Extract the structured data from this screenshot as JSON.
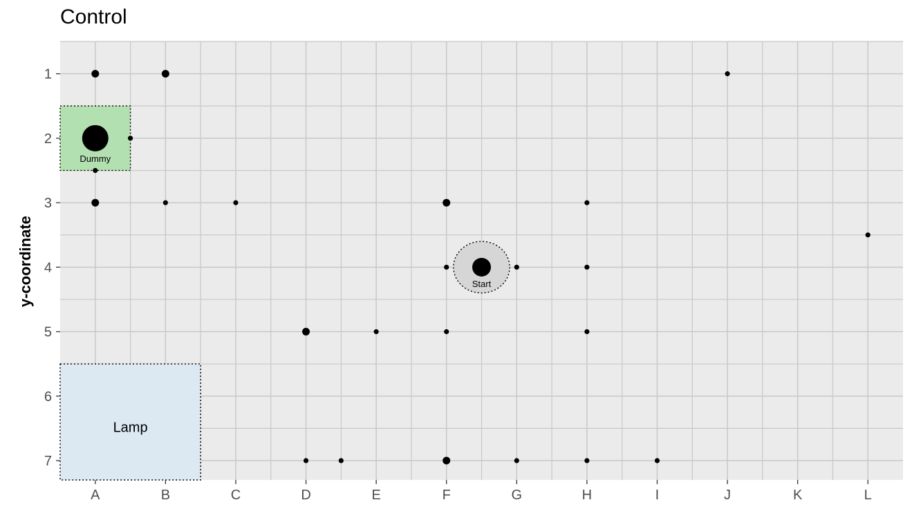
{
  "chart_data": {
    "type": "scatter",
    "title": "Control",
    "xlabel": "",
    "ylabel": "y-coordinate",
    "x_categories": [
      "A",
      "B",
      "C",
      "D",
      "E",
      "F",
      "G",
      "H",
      "I",
      "J",
      "K",
      "L"
    ],
    "y_ticks": [
      1,
      2,
      3,
      4,
      5,
      6,
      7
    ],
    "xlim": [
      0.5,
      12.5
    ],
    "ylim": [
      7.3,
      0.5
    ],
    "y_reversed": true,
    "grid": true,
    "panel_color": "#ebebeb",
    "grid_color": "#c8c8c8",
    "points": [
      {
        "x": 1,
        "y": 1,
        "size": 2
      },
      {
        "x": 2,
        "y": 1,
        "size": 2
      },
      {
        "x": 10,
        "y": 1,
        "size": 1
      },
      {
        "x": 1,
        "y": 2,
        "size": 5
      },
      {
        "x": 1.5,
        "y": 2,
        "size": 1
      },
      {
        "x": 1,
        "y": 2.5,
        "size": 1
      },
      {
        "x": 1,
        "y": 3,
        "size": 2
      },
      {
        "x": 2,
        "y": 3,
        "size": 1
      },
      {
        "x": 3,
        "y": 3,
        "size": 1
      },
      {
        "x": 6,
        "y": 3,
        "size": 2
      },
      {
        "x": 8,
        "y": 3,
        "size": 1
      },
      {
        "x": 12,
        "y": 3.5,
        "size": 1
      },
      {
        "x": 6,
        "y": 4,
        "size": 1
      },
      {
        "x": 6.5,
        "y": 4,
        "size": 4
      },
      {
        "x": 7,
        "y": 4,
        "size": 1
      },
      {
        "x": 8,
        "y": 4,
        "size": 1
      },
      {
        "x": 4,
        "y": 5,
        "size": 2
      },
      {
        "x": 5,
        "y": 5,
        "size": 1
      },
      {
        "x": 6,
        "y": 5,
        "size": 1
      },
      {
        "x": 8,
        "y": 5,
        "size": 1
      },
      {
        "x": 4,
        "y": 7,
        "size": 1
      },
      {
        "x": 4.5,
        "y": 7,
        "size": 1
      },
      {
        "x": 6,
        "y": 7,
        "size": 2
      },
      {
        "x": 7,
        "y": 7,
        "size": 1
      },
      {
        "x": 8,
        "y": 7,
        "size": 1
      },
      {
        "x": 9,
        "y": 7,
        "size": 1
      }
    ],
    "regions": [
      {
        "label": "Dummy",
        "shape": "rect",
        "x_range": [
          0.5,
          1.5
        ],
        "y_range": [
          1.5,
          2.5
        ],
        "fill": "#b3e0b0",
        "label_x": 1,
        "label_y": 2.33,
        "label_size": "small"
      },
      {
        "label": "Lamp",
        "shape": "rect",
        "x_range": [
          0.5,
          2.5
        ],
        "y_range": [
          5.5,
          7.3
        ],
        "fill": "#dce8f2",
        "label_x": 1.5,
        "label_y": 6.5,
        "label_size": "large"
      },
      {
        "label": "Start",
        "shape": "circle",
        "cx": 6.5,
        "cy": 4,
        "r": 0.4,
        "fill": "#d6d6d6",
        "label_x": 6.5,
        "label_y": 4.27,
        "label_size": "small"
      }
    ]
  }
}
